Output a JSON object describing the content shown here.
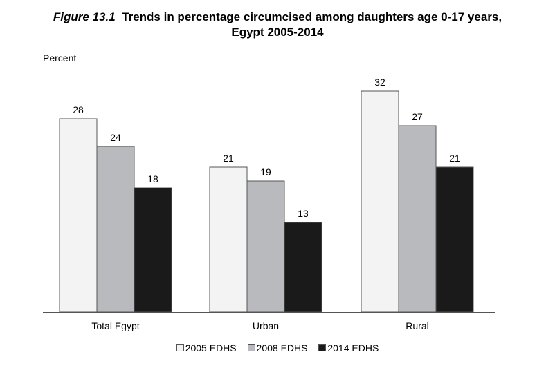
{
  "chart_data": {
    "type": "bar",
    "title_prefix": "Figure 13.1",
    "title_line1": "Trends in percentage circumcised among daughters age 0-17 years,",
    "title_line2": "Egypt 2005-2014",
    "ylabel": "Percent",
    "xlabel": "",
    "ylim": [
      0,
      32
    ],
    "grid": false,
    "legend_position": "bottom",
    "categories": [
      "Total Egypt",
      "Urban",
      "Rural"
    ],
    "series": [
      {
        "name": "2005 EDHS",
        "color": "#f2f3f2",
        "values": [
          28,
          21,
          32
        ]
      },
      {
        "name": "2008 EDHS",
        "color": "#b9babd",
        "values": [
          24,
          19,
          27
        ]
      },
      {
        "name": "2014 EDHS",
        "color": "#1a1a1a",
        "values": [
          18,
          13,
          21
        ]
      }
    ]
  }
}
